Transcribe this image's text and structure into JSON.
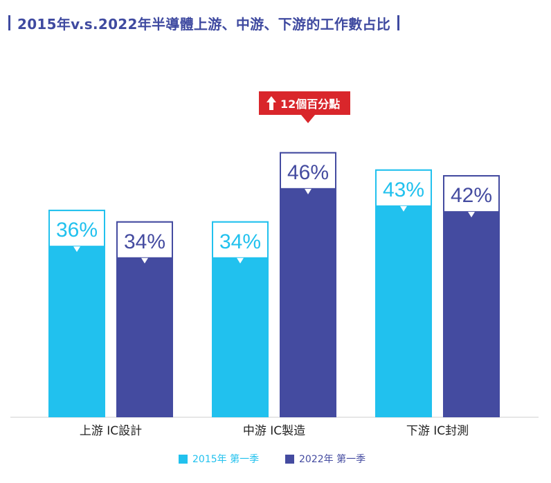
{
  "title": "2015年v.s.2022年半導體上游、中游、下游的工作數占比",
  "colors": {
    "series_2015": "#21c1ee",
    "series_2022": "#444ba0",
    "title": "#3f4aa0",
    "annotation": "#d9262b",
    "axis": "#cccccc"
  },
  "annotation": {
    "icon": "up-arrow-icon",
    "text": "12個百分點"
  },
  "chart_data": {
    "type": "bar",
    "title": "2015年v.s.2022年半導體上游、中游、下游的工作數占比",
    "categories": [
      "上游 IC設計",
      "中游 IC製造",
      "下游 IC封測"
    ],
    "series": [
      {
        "name": "2015年 第一季",
        "values": [
          36,
          34,
          43
        ],
        "labels": [
          "36%",
          "34%",
          "43%"
        ]
      },
      {
        "name": "2022年 第一季",
        "values": [
          34,
          46,
          42
        ],
        "labels": [
          "34%",
          "46%",
          "42%"
        ]
      }
    ],
    "unit": "%",
    "ylim": [
      0,
      50
    ],
    "grid": false,
    "legend": "bottom-center",
    "xlabel": "",
    "ylabel": ""
  }
}
